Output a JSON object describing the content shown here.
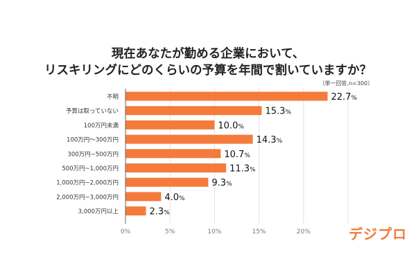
{
  "chart_data": {
    "type": "bar",
    "orientation": "horizontal",
    "title": "現在あなたが勤める企業において、\nリスキリングにどのくらいの予算を年間で割いていますか？",
    "title_lines": [
      "現在あなたが勤める企業において、",
      "リスキリングにどのくらいの予算を年間で割いていますか？"
    ],
    "note": "（単一回答,n=300）",
    "categories": [
      "不明",
      "予算は取っていない",
      "100万円未満",
      "100万円〜300万円",
      "300万円~500万円",
      "500万円~1,000万円",
      "1,000万円~2,000万円",
      "2,000万円~3,000万円",
      "3,000万円以上"
    ],
    "values": [
      22.7,
      15.3,
      10.0,
      14.3,
      10.7,
      11.3,
      9.3,
      4.0,
      2.3
    ],
    "data_labels": [
      "22.7",
      "15.3",
      "10.0",
      "14.3",
      "10.7",
      "11.3",
      "9.3",
      "4.0",
      "2.3"
    ],
    "unit": "%",
    "xlim": [
      0,
      25
    ],
    "xticks": [
      0,
      5,
      10,
      15,
      20
    ],
    "xtick_labels": [
      "0%",
      "5%",
      "10%",
      "15%",
      "20%"
    ],
    "grid": true,
    "bar_color": "#f47b3b",
    "logo_text": "デジプロ",
    "logo_color": "#f07a3a"
  }
}
